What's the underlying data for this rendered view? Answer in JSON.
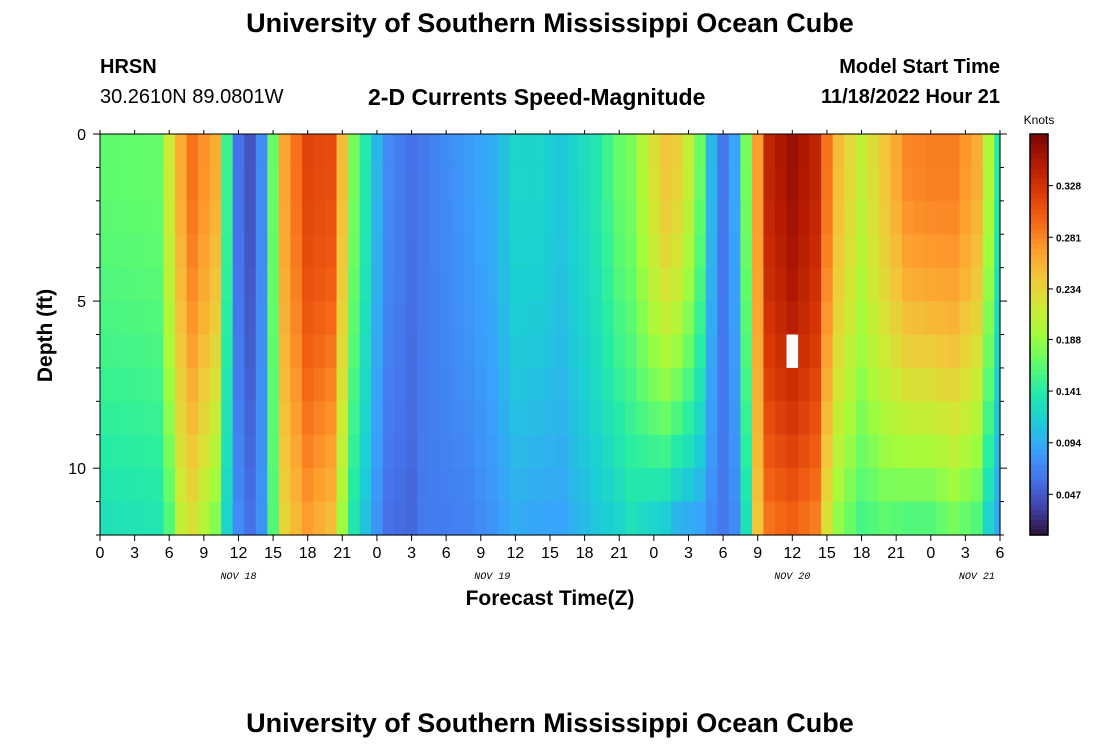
{
  "header": {
    "title": "University of Southern Mississippi Ocean Cube",
    "station": "HRSN",
    "coordinates": "30.2610N  89.0801W",
    "model_start_label": "Model Start Time",
    "model_start_value": "11/18/2022 Hour 21"
  },
  "footer": {
    "title": "University of Southern Mississippi Ocean Cube"
  },
  "chart_data": {
    "type": "heatmap",
    "title": "2-D Currents Speed-Magnitude",
    "xlabel": "Forecast Time(Z)",
    "ylabel": "Depth (ft)",
    "x_ticks": [
      "0",
      "3",
      "6",
      "9",
      "12",
      "15",
      "18",
      "21",
      "0",
      "3",
      "6",
      "9",
      "12",
      "15",
      "18",
      "21",
      "0",
      "3",
      "6",
      "9",
      "12",
      "15",
      "18",
      "21",
      "0",
      "3",
      "6"
    ],
    "date_labels": [
      {
        "label": "NOV 18",
        "hours_from_tick0": 12
      },
      {
        "label": "NOV 19",
        "hours_from_tick0": 34
      },
      {
        "label": "NOV 20",
        "hours_from_tick0": 60
      },
      {
        "label": "NOV 21",
        "hours_from_tick0": 76
      }
    ],
    "y_ticks": [
      0,
      5,
      10
    ],
    "ylim": [
      0,
      12
    ],
    "colorbar": {
      "label": "Knots",
      "ticks": [
        0.047,
        0.094,
        0.141,
        0.188,
        0.234,
        0.281,
        0.328
      ],
      "range": [
        0.01,
        0.375
      ]
    },
    "colors": [
      "#30123b",
      "#4145ab",
      "#4675ed",
      "#39a2fc",
      "#1bcfd4",
      "#24eca6",
      "#61fc6c",
      "#a4fc3b",
      "#d1e834",
      "#f3c63a",
      "#fe9b2d",
      "#f36315",
      "#d93806",
      "#b11901",
      "#7a0403"
    ],
    "grid": {
      "n_time": 80,
      "time_step_hours": 1,
      "depth_levels_ft": [
        0.5,
        1.5,
        2.5,
        3.5,
        4.5,
        5.5,
        6.5,
        7.5,
        8.5,
        9.5,
        10.5,
        11.5
      ],
      "profile_keyframes_hours": [
        0,
        5,
        6,
        7,
        8,
        10,
        11,
        12,
        13,
        14,
        15,
        16,
        18,
        20,
        21,
        22,
        24,
        25,
        27,
        28,
        32,
        34,
        36,
        38,
        40,
        43,
        45,
        46,
        47,
        48,
        49,
        50,
        51,
        52,
        53,
        54,
        55,
        56,
        57,
        58,
        60,
        62,
        63,
        64,
        66,
        68,
        70,
        72,
        74,
        76,
        77,
        78,
        79
      ],
      "surface_speed_knots": [
        0.165,
        0.168,
        0.215,
        0.26,
        0.29,
        0.26,
        0.15,
        0.06,
        0.045,
        0.075,
        0.17,
        0.265,
        0.315,
        0.31,
        0.25,
        0.175,
        0.1,
        0.075,
        0.06,
        0.065,
        0.085,
        0.095,
        0.12,
        0.12,
        0.11,
        0.135,
        0.168,
        0.175,
        0.2,
        0.225,
        0.245,
        0.238,
        0.21,
        0.17,
        0.1,
        0.065,
        0.09,
        0.175,
        0.27,
        0.34,
        0.36,
        0.34,
        0.29,
        0.25,
        0.21,
        0.245,
        0.28,
        0.285,
        0.285,
        0.26,
        0.2,
        0.14,
        0.095
      ],
      "bottom_speed_knots": [
        0.13,
        0.135,
        0.16,
        0.21,
        0.225,
        0.18,
        0.12,
        0.075,
        0.06,
        0.08,
        0.16,
        0.235,
        0.27,
        0.25,
        0.19,
        0.135,
        0.08,
        0.06,
        0.055,
        0.065,
        0.07,
        0.08,
        0.095,
        0.09,
        0.09,
        0.11,
        0.12,
        0.13,
        0.125,
        0.12,
        0.115,
        0.1,
        0.095,
        0.09,
        0.075,
        0.065,
        0.075,
        0.13,
        0.245,
        0.29,
        0.3,
        0.285,
        0.225,
        0.185,
        0.155,
        0.165,
        0.16,
        0.16,
        0.175,
        0.16,
        0.12,
        0.09,
        0.07
      ],
      "missing_cells": [
        {
          "time_index": 60,
          "depth_index": 6
        }
      ]
    }
  }
}
